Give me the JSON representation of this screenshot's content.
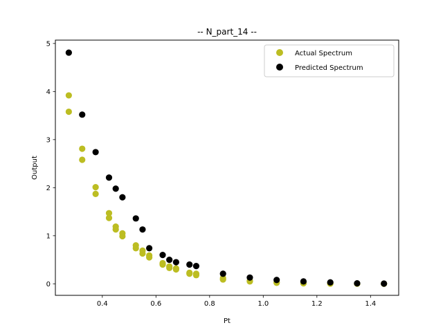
{
  "chart_data": {
    "type": "scatter",
    "title": "-- N_part_14 --",
    "xlabel": "Pt",
    "ylabel": "Output",
    "xlim": [
      0.225,
      1.505
    ],
    "ylim": [
      -0.24,
      5.07
    ],
    "xticks": [
      0.4,
      0.6,
      0.8,
      1.0,
      1.2,
      1.4
    ],
    "xtick_labels": [
      "0.4",
      "0.6",
      "0.8",
      "1.0",
      "1.2",
      "1.4"
    ],
    "yticks": [
      0,
      1,
      2,
      3,
      4,
      5
    ],
    "ytick_labels": [
      "0",
      "1",
      "2",
      "3",
      "4",
      "5"
    ],
    "grid": false,
    "legend_position": "top-right",
    "series": [
      {
        "name": "Actual Spectrum",
        "color": "#bcbd22",
        "points": [
          [
            0.275,
            3.92
          ],
          [
            0.275,
            3.58
          ],
          [
            0.325,
            2.81
          ],
          [
            0.325,
            2.58
          ],
          [
            0.375,
            2.01
          ],
          [
            0.375,
            1.87
          ],
          [
            0.425,
            1.47
          ],
          [
            0.425,
            1.37
          ],
          [
            0.45,
            1.19
          ],
          [
            0.45,
            1.13
          ],
          [
            0.475,
            1.05
          ],
          [
            0.475,
            0.99
          ],
          [
            0.525,
            0.8
          ],
          [
            0.525,
            0.74
          ],
          [
            0.55,
            0.69
          ],
          [
            0.55,
            0.63
          ],
          [
            0.575,
            0.59
          ],
          [
            0.575,
            0.55
          ],
          [
            0.625,
            0.43
          ],
          [
            0.625,
            0.4
          ],
          [
            0.65,
            0.36
          ],
          [
            0.65,
            0.33
          ],
          [
            0.675,
            0.32
          ],
          [
            0.675,
            0.3
          ],
          [
            0.725,
            0.23
          ],
          [
            0.725,
            0.21
          ],
          [
            0.75,
            0.21
          ],
          [
            0.75,
            0.18
          ],
          [
            0.85,
            0.12
          ],
          [
            0.85,
            0.09
          ],
          [
            0.95,
            0.06
          ],
          [
            0.95,
            0.05
          ],
          [
            1.05,
            0.03
          ],
          [
            1.05,
            0.02
          ],
          [
            1.15,
            0.015
          ],
          [
            1.15,
            0.01
          ],
          [
            1.25,
            0.01
          ],
          [
            1.25,
            0.005
          ],
          [
            1.35,
            0.005
          ],
          [
            1.35,
            0.003
          ],
          [
            1.45,
            0.002
          ],
          [
            1.45,
            0.001
          ]
        ]
      },
      {
        "name": "Predicted Spectrum",
        "color": "#000000",
        "points": [
          [
            0.275,
            4.81
          ],
          [
            0.325,
            3.52
          ],
          [
            0.375,
            2.74
          ],
          [
            0.425,
            2.21
          ],
          [
            0.45,
            1.98
          ],
          [
            0.475,
            1.8
          ],
          [
            0.525,
            1.36
          ],
          [
            0.55,
            1.13
          ],
          [
            0.575,
            0.74
          ],
          [
            0.625,
            0.6
          ],
          [
            0.65,
            0.5
          ],
          [
            0.675,
            0.45
          ],
          [
            0.725,
            0.4
          ],
          [
            0.75,
            0.37
          ],
          [
            0.85,
            0.21
          ],
          [
            0.95,
            0.13
          ],
          [
            1.05,
            0.08
          ],
          [
            1.15,
            0.05
          ],
          [
            1.25,
            0.03
          ],
          [
            1.35,
            0.01
          ],
          [
            1.45,
            0.005
          ]
        ]
      }
    ]
  }
}
